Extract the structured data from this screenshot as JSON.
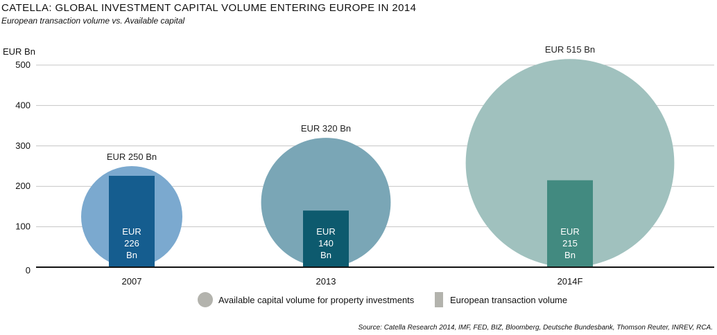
{
  "title": "CATELLA: GLOBAL INVESTMENT CAPITAL VOLUME ENTERING EUROPE IN 2014",
  "subtitle": "European transaction volume vs. Available capital",
  "source": "Source: Catella Research 2014, IMF,  FED, BIZ, Bloomberg, Deutsche Bundesbank, Thomson Reuter, INREV, RCA.",
  "legend": {
    "circle_label": "Available capital volume for property investments",
    "bar_label": "European transaction volume",
    "circle_color": "#b3b3ad",
    "bar_color": "#b3b3ad"
  },
  "chart_data": {
    "type": "bubble-bar",
    "ylabel": "EUR Bn",
    "ylim": [
      0,
      500
    ],
    "yticks": [
      "0",
      "100",
      "200",
      "300",
      "400",
      "500"
    ],
    "grid": true,
    "categories": [
      "2007",
      "2013",
      "2014F"
    ],
    "series": [
      {
        "name": "Available capital volume for property investments",
        "values": [
          250,
          320,
          515
        ],
        "labels": [
          "EUR 250 Bn",
          "EUR 320 Bn",
          "EUR 515 Bn"
        ],
        "colors": [
          "#7ba9cf",
          "#7aa6b6",
          "#a0c1be"
        ]
      },
      {
        "name": "European transaction volume",
        "values": [
          226,
          140,
          215
        ],
        "labels": [
          [
            "EUR",
            "226",
            "Bn"
          ],
          [
            "EUR",
            "140",
            "Bn"
          ],
          [
            "EUR",
            "215",
            "Bn"
          ]
        ],
        "colors": [
          "#155d8f",
          "#0d5a6e",
          "#428a80"
        ]
      }
    ]
  }
}
